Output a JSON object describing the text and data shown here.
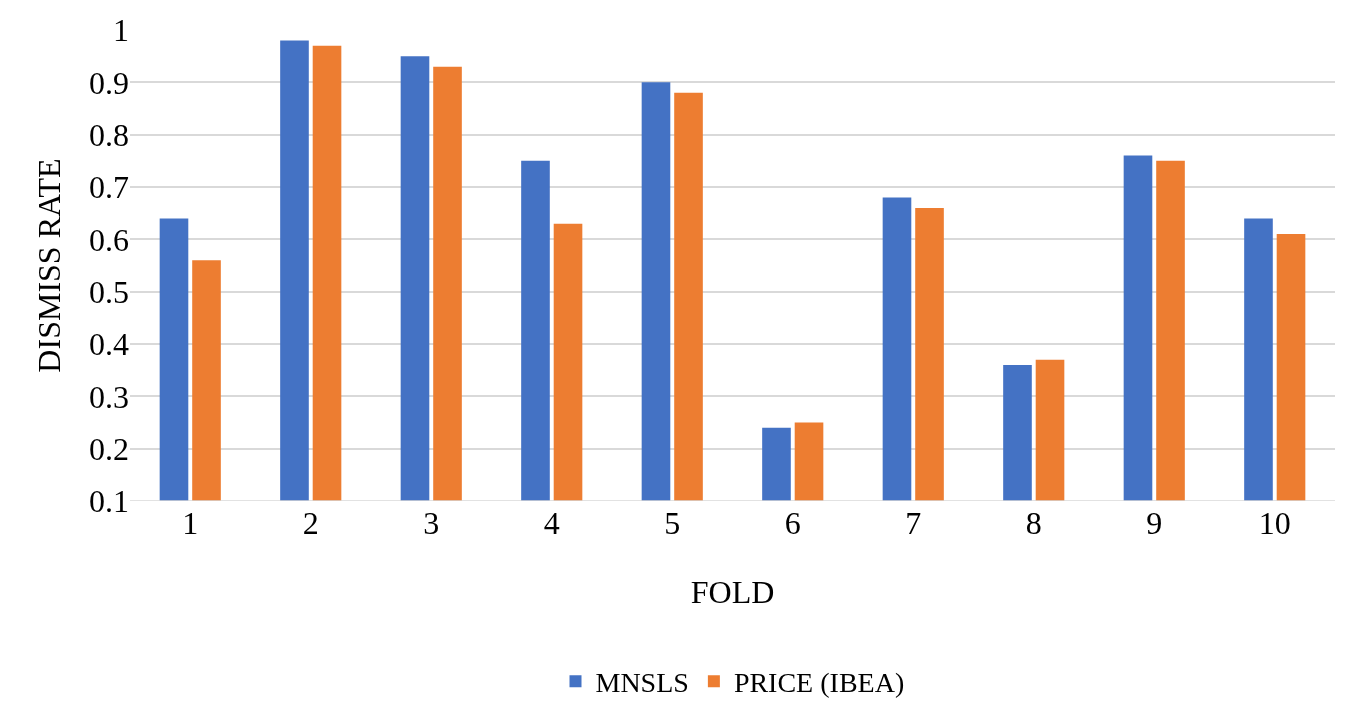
{
  "chart_data": {
    "type": "bar",
    "xlabel": "FOLD",
    "ylabel": "DISMISS RATE",
    "categories": [
      "1",
      "2",
      "3",
      "4",
      "5",
      "6",
      "7",
      "8",
      "9",
      "10"
    ],
    "series": [
      {
        "name": "MNSLS",
        "color": "#4472c4",
        "values": [
          0.64,
          0.98,
          0.95,
          0.75,
          0.9,
          0.24,
          0.68,
          0.36,
          0.76,
          0.64
        ]
      },
      {
        "name": "PRICE (IBEA)",
        "color": "#ed7d31",
        "values": [
          0.56,
          0.97,
          0.93,
          0.63,
          0.88,
          0.25,
          0.66,
          0.37,
          0.75,
          0.61
        ]
      }
    ],
    "ylim": [
      0.1,
      1
    ],
    "yticks": [
      0.1,
      0.2,
      0.3,
      0.4,
      0.5,
      0.6,
      0.7,
      0.8,
      0.9,
      1
    ],
    "grid": "y",
    "legend": "bottom"
  }
}
